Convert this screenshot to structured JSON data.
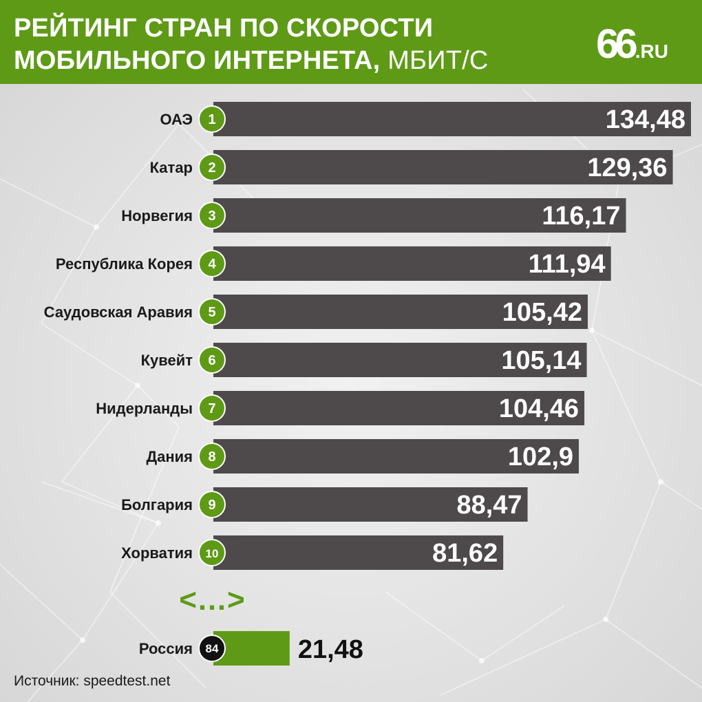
{
  "header": {
    "title_line1": "РЕЙТИНГ СТРАН ПО СКОРОСТИ",
    "title_line2": "МОБИЛЬНОГО ИНТЕРНЕТА,",
    "title_unit": "МБИТ/С",
    "logo_number": "66",
    "logo_suffix": ".RU"
  },
  "colors": {
    "header_green": "#5e9a16",
    "bar_gray": "#4e4a4b",
    "rank_green": "#5e9a16",
    "russia_bar": "#5e9a16",
    "russia_rank": "#111111"
  },
  "chart_data": {
    "type": "bar",
    "orientation": "horizontal",
    "categories": [
      "ОАЭ",
      "Катар",
      "Норвегия",
      "Республика Корея",
      "Саудовская Аравия",
      "Кувейт",
      "Нидерланды",
      "Дания",
      "Болгария",
      "Хорватия"
    ],
    "ranks": [
      "1",
      "2",
      "3",
      "4",
      "5",
      "6",
      "7",
      "8",
      "9",
      "10"
    ],
    "values": [
      134.48,
      129.36,
      116.17,
      111.94,
      105.42,
      105.14,
      104.46,
      102.9,
      88.47,
      81.62
    ],
    "value_labels": [
      "134,48",
      "129,36",
      "116,17",
      "111,94",
      "105,42",
      "105,14",
      "104,46",
      "102,9",
      "88,47",
      "81,62"
    ],
    "xlim": [
      0,
      134.48
    ],
    "gap_marker": "<…>",
    "highlight": {
      "category": "Россия",
      "rank": "84",
      "value": 21.48,
      "value_label": "21,48"
    },
    "grid": false,
    "legend": "none"
  },
  "footer": {
    "source": "Источник: speedtest.net"
  }
}
